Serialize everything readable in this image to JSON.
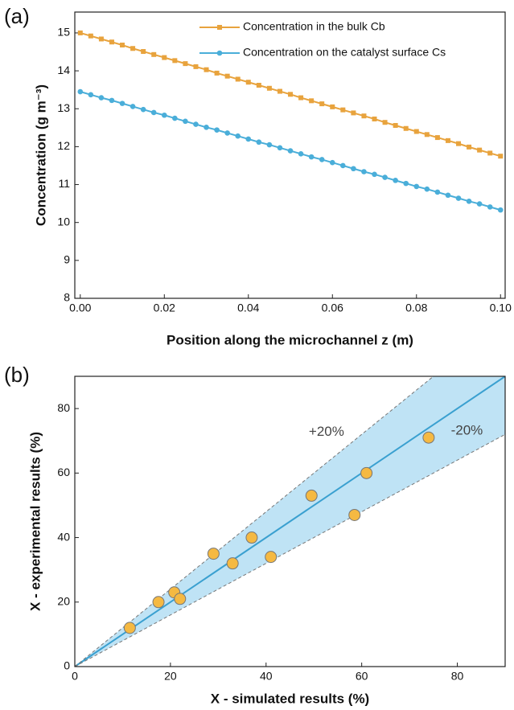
{
  "chart_data": [
    {
      "type": "line",
      "panel_label": "(a)",
      "x_label": "Position along the microchannel z (m)",
      "y_label": "Concentration (g m⁻³)",
      "x": [
        0,
        0.0025,
        0.005,
        0.0075,
        0.01,
        0.0125,
        0.015,
        0.0175,
        0.02,
        0.0225,
        0.025,
        0.0275,
        0.03,
        0.0325,
        0.035,
        0.0375,
        0.04,
        0.0425,
        0.045,
        0.0475,
        0.05,
        0.0525,
        0.055,
        0.0575,
        0.06,
        0.0625,
        0.065,
        0.0675,
        0.07,
        0.0725,
        0.075,
        0.0775,
        0.08,
        0.0825,
        0.085,
        0.0875,
        0.09,
        0.0925,
        0.095,
        0.0975,
        0.1
      ],
      "series": [
        {
          "name": "Concentration in the bulk Cb",
          "color": "#e8a33d",
          "marker": "square",
          "values": [
            15,
            14.92,
            14.84,
            14.76,
            14.68,
            14.59,
            14.51,
            14.43,
            14.35,
            14.27,
            14.19,
            14.11,
            14.03,
            13.94,
            13.86,
            13.78,
            13.7,
            13.62,
            13.54,
            13.46,
            13.38,
            13.29,
            13.21,
            13.13,
            13.05,
            12.97,
            12.89,
            12.81,
            12.73,
            12.64,
            12.56,
            12.48,
            12.4,
            12.32,
            12.24,
            12.16,
            12.08,
            11.99,
            11.91,
            11.83,
            11.75
          ]
        },
        {
          "name": "Concentration on the catalyst surface Cs",
          "color": "#4aaed9",
          "marker": "circle",
          "values": [
            13.45,
            13.37,
            13.29,
            13.22,
            13.14,
            13.06,
            12.98,
            12.9,
            12.83,
            12.75,
            12.67,
            12.59,
            12.51,
            12.44,
            12.36,
            12.28,
            12.2,
            12.12,
            12.05,
            11.97,
            11.89,
            11.81,
            11.73,
            11.66,
            11.58,
            11.5,
            11.42,
            11.34,
            11.27,
            11.19,
            11.11,
            11.03,
            10.95,
            10.88,
            10.8,
            10.72,
            10.64,
            10.56,
            10.49,
            10.41,
            10.33
          ]
        }
      ],
      "xlim": [
        -0.0013,
        0.1011
      ],
      "ylim": [
        8,
        15.55
      ],
      "xticks": [
        {
          "value": 0,
          "label": "0.00"
        },
        {
          "value": 0.02,
          "label": "0.02"
        },
        {
          "value": 0.04,
          "label": "0.04"
        },
        {
          "value": 0.06,
          "label": "0.06"
        },
        {
          "value": 0.08,
          "label": "0.08"
        },
        {
          "value": 0.1,
          "label": "0.10"
        }
      ],
      "yticks": [
        8,
        9,
        10,
        11,
        12,
        13,
        14,
        15
      ],
      "legend": "top-right"
    },
    {
      "type": "scatter",
      "panel_label": "(b)",
      "x_label": "X - simulated results (%)",
      "y_label": "X - experimental results (%)",
      "x": [
        11.5,
        17.5,
        20.8,
        22,
        29,
        33,
        37,
        41,
        49.5,
        58.5,
        61,
        74
      ],
      "values": [
        12,
        20,
        23,
        21,
        35,
        32,
        40,
        34,
        53,
        47,
        60,
        71
      ],
      "color": "#f5b942",
      "reference_lines": [
        {
          "slope": 1,
          "color": "#3aa0d0"
        },
        {
          "slope": 1.2,
          "label": "+20%"
        },
        {
          "slope": 0.8,
          "label": "-20%"
        }
      ],
      "band_color": "#bfe3f5",
      "xlim": [
        0,
        90
      ],
      "ylim": [
        0,
        90
      ],
      "xticks": [
        0,
        20,
        40,
        60,
        80
      ],
      "yticks": [
        0,
        20,
        40,
        60,
        80
      ]
    }
  ]
}
